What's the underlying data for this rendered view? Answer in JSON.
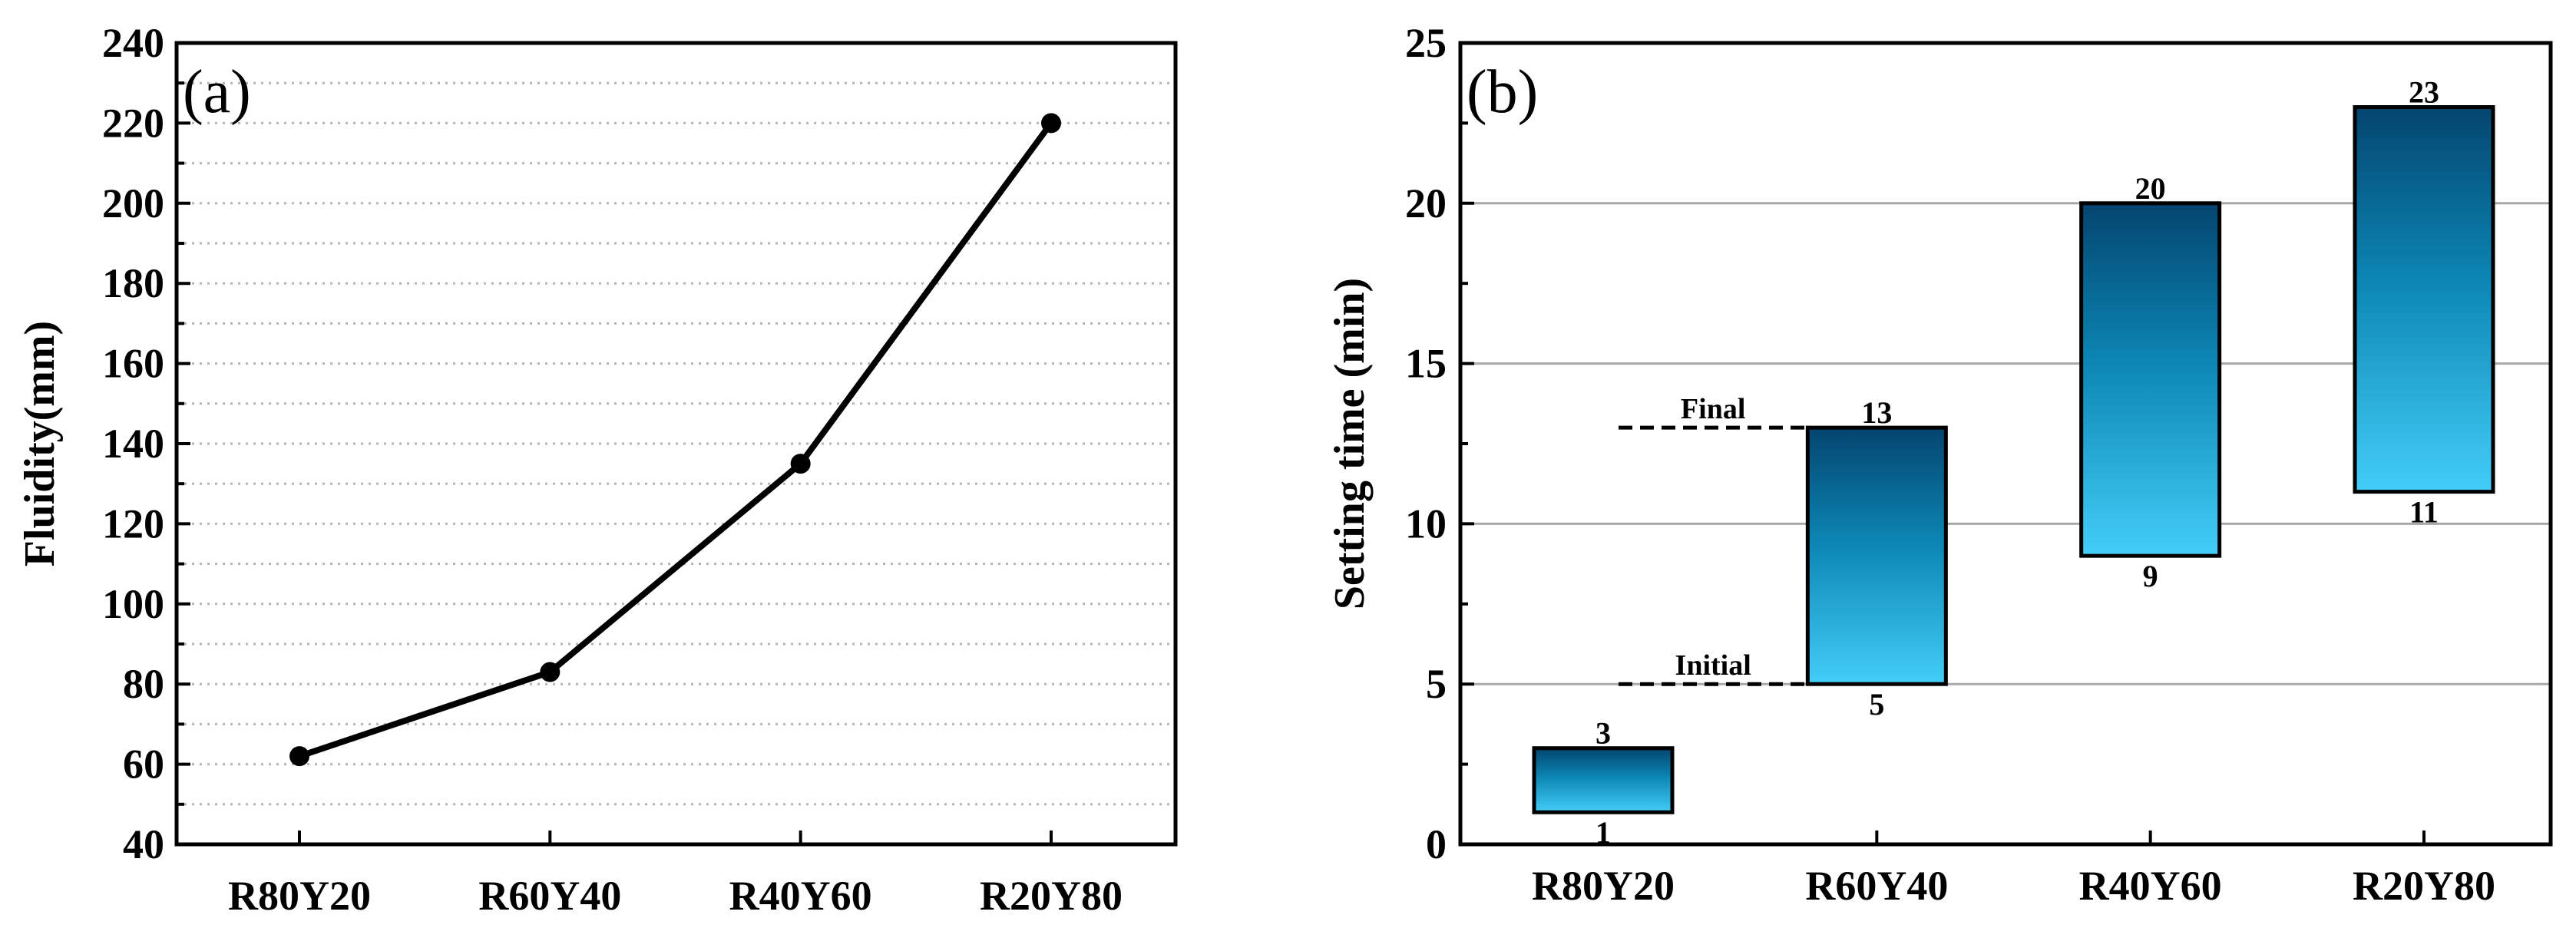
{
  "chart_data": [
    {
      "type": "line",
      "panel_label": "(a)",
      "categories": [
        "R80Y20",
        "R60Y40",
        "R40Y60",
        "R20Y80"
      ],
      "series": [
        {
          "name": "Fluidity",
          "values": [
            62,
            83,
            135,
            220
          ]
        }
      ],
      "ylabel": "Fluidity(mm)",
      "xlabel": "",
      "ylim": [
        40,
        240
      ],
      "yticks": [
        "40",
        "60",
        "80",
        "100",
        "120",
        "140",
        "160",
        "180",
        "200",
        "220",
        "240"
      ],
      "grid": "horizontal dotted",
      "line_color": "#000000"
    },
    {
      "type": "bar",
      "subtype": "floating range bar",
      "panel_label": "(b)",
      "categories": [
        "R80Y20",
        "R60Y40",
        "R40Y60",
        "R20Y80"
      ],
      "series": [
        {
          "name": "Initial",
          "values": [
            1,
            5,
            9,
            11
          ]
        },
        {
          "name": "Final",
          "values": [
            3,
            13,
            20,
            23
          ]
        }
      ],
      "initial_labels": [
        "1",
        "5",
        "9",
        "11"
      ],
      "final_labels": [
        "3",
        "13",
        "20",
        "23"
      ],
      "ylabel": "Setting time (min)",
      "xlabel": "",
      "ylim": [
        0,
        25
      ],
      "yticks": [
        "0",
        "5",
        "10",
        "15",
        "20",
        "25"
      ],
      "grid": "horizontal solid",
      "annotations": [
        {
          "text": "Final",
          "value": 13
        },
        {
          "text": "Initial",
          "value": 5
        }
      ],
      "colors": {
        "top": "#03456f",
        "middle": "#0c86b4",
        "bottom": "#43cdf8"
      }
    }
  ]
}
